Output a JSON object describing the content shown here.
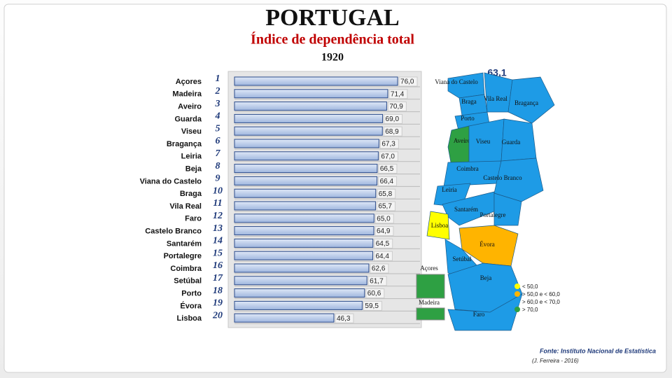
{
  "chart_data": {
    "type": "bar",
    "title": "PORTUGAL",
    "subtitle": "Índice de dependência total",
    "year": "1920",
    "categories": [
      "Açores",
      "Madeira",
      "Aveiro",
      "Guarda",
      "Viseu",
      "Bragança",
      "Leiria",
      "Beja",
      "Viana do Castelo",
      "Braga",
      "Vila Real",
      "Faro",
      "Castelo Branco",
      "Santarém",
      "Portalegre",
      "Coimbra",
      "Setúbal",
      "Porto",
      "Évora",
      "Lisboa"
    ],
    "ranks": [
      1,
      2,
      3,
      4,
      5,
      6,
      7,
      8,
      9,
      10,
      11,
      12,
      13,
      14,
      15,
      16,
      17,
      18,
      19,
      20
    ],
    "values": [
      76.0,
      71.4,
      70.9,
      69.0,
      68.9,
      67.3,
      67.0,
      66.5,
      66.4,
      65.8,
      65.7,
      65.0,
      64.9,
      64.5,
      64.4,
      62.6,
      61.7,
      60.6,
      59.5,
      46.3
    ],
    "value_labels": [
      "76,0",
      "71,4",
      "70,9",
      "69,0",
      "68,9",
      "67,3",
      "67,0",
      "66,5",
      "66,4",
      "65,8",
      "65,7",
      "65,0",
      "64,9",
      "64,5",
      "64,4",
      "62,6",
      "61,7",
      "60,6",
      "59,5",
      "46,3"
    ],
    "color": "#b9cbe9"
  },
  "map": {
    "total": {
      "value": 63.1,
      "label": "63,1"
    },
    "regions": [
      {
        "label": "Viana do Castelo",
        "color": "#1e9be6"
      },
      {
        "label": "Braga",
        "color": "#1e9be6"
      },
      {
        "label": "Vila Real",
        "color": "#1e9be6"
      },
      {
        "label": "Bragança",
        "color": "#1e9be6"
      },
      {
        "label": "Porto",
        "color": "#1e9be6"
      },
      {
        "label": "Aveiro",
        "color": "#2ea043"
      },
      {
        "label": "Viseu",
        "color": "#1e9be6"
      },
      {
        "label": "Guarda",
        "color": "#1e9be6"
      },
      {
        "label": "Coimbra",
        "color": "#1e9be6"
      },
      {
        "label": "Castelo Branco",
        "color": "#1e9be6"
      },
      {
        "label": "Leiria",
        "color": "#1e9be6"
      },
      {
        "label": "Santarém",
        "color": "#1e9be6"
      },
      {
        "label": "Portalegre",
        "color": "#1e9be6"
      },
      {
        "label": "Lisboa",
        "color": "#ffff00"
      },
      {
        "label": "Évora",
        "color": "#ffb400"
      },
      {
        "label": "Setúbal",
        "color": "#1e9be6"
      },
      {
        "label": "Beja",
        "color": "#1e9be6"
      },
      {
        "label": "Faro",
        "color": "#1e9be6"
      }
    ],
    "insets": [
      {
        "label": "Açores",
        "color": "#2ea043"
      },
      {
        "label": "Madeira",
        "color": "#2ea043"
      }
    ],
    "legend": [
      {
        "label": "< 50,0",
        "color": "#ffff00"
      },
      {
        "label": "> 50,0  e < 60,0",
        "color": "#ffb400"
      },
      {
        "label": "> 60,0  e < 70,0",
        "color": "#1e9be6"
      },
      {
        "label": "> 70,0",
        "color": "#2ea043"
      }
    ]
  },
  "source": "Fonte: Instituto Nacional de Estatística",
  "author": "(J. Ferreira - 2016)"
}
